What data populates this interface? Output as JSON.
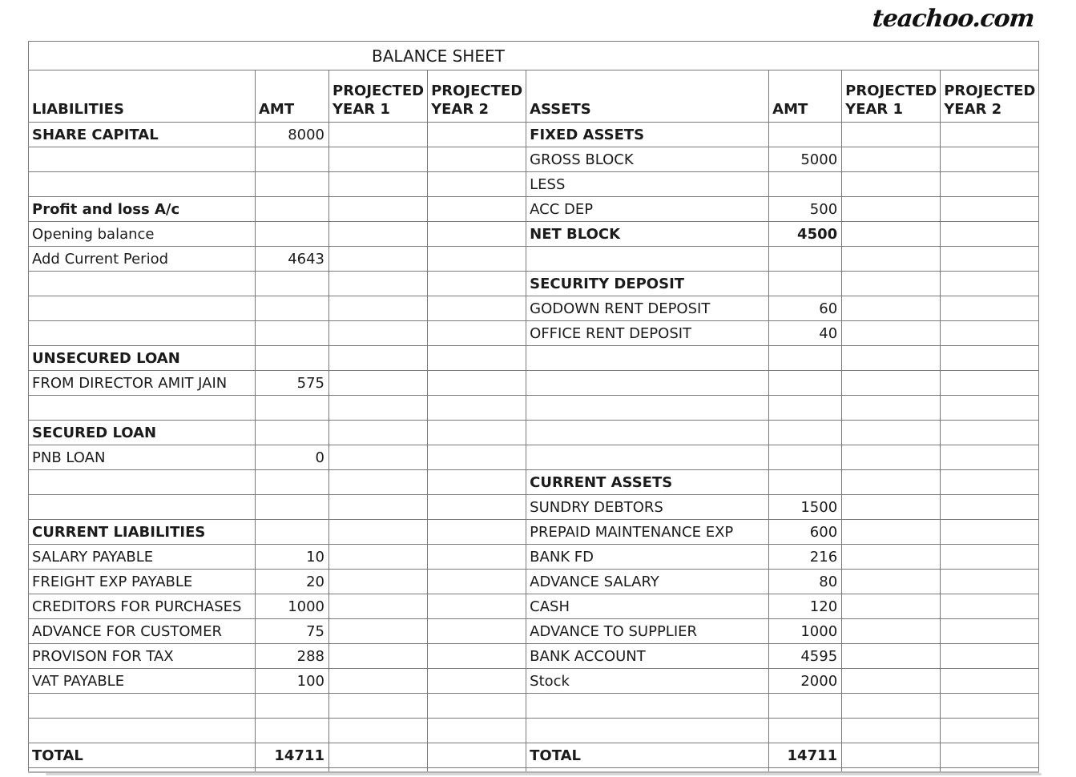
{
  "logo": {
    "text": "teachoo.com"
  },
  "sheet": {
    "title": "BALANCE SHEET",
    "header": {
      "liabilities": "LIABILITIES",
      "amt": "AMT",
      "projected": "PROJECTED",
      "year1": "YEAR 1",
      "year2": "YEAR 2",
      "assets": "ASSETS"
    },
    "rows": [
      {
        "liability": "SHARE CAPITAL",
        "liability_bold": true,
        "liability_amt": "8000",
        "asset": "FIXED ASSETS",
        "asset_bold": true
      },
      {
        "asset": "GROSS BLOCK",
        "asset_amt": "5000"
      },
      {
        "asset": "LESS"
      },
      {
        "liability": "Profit and loss A/c",
        "liability_bold": true,
        "asset": "ACC DEP",
        "asset_amt": "500"
      },
      {
        "liability": "Opening balance",
        "liability_comment": true,
        "asset": "NET BLOCK",
        "asset_bold": true,
        "asset_amt": "4500",
        "asset_amt_bold": true
      },
      {
        "liability": "Add Current Period",
        "liability_amt": "4643"
      },
      {
        "asset": "SECURITY DEPOSIT",
        "asset_bold": true
      },
      {
        "asset": "GODOWN RENT DEPOSIT",
        "asset_amt": "60"
      },
      {
        "asset": "OFFICE RENT DEPOSIT",
        "asset_amt": "40"
      },
      {
        "liability": "UNSECURED LOAN",
        "liability_bold": true
      },
      {
        "liability": "FROM DIRECTOR AMIT JAIN",
        "liability_amt": "575"
      },
      {},
      {
        "liability": "SECURED LOAN",
        "liability_bold": true
      },
      {
        "liability": "PNB LOAN",
        "liability_amt": "0"
      },
      {
        "asset": "CURRENT ASSETS",
        "asset_bold": true
      },
      {
        "asset": "SUNDRY DEBTORS",
        "asset_amt": "1500"
      },
      {
        "liability": "CURRENT LIABILITIES",
        "liability_bold": true,
        "asset": "PREPAID MAINTENANCE EXP",
        "asset_amt": "600"
      },
      {
        "liability": "SALARY PAYABLE",
        "liability_amt": "10",
        "asset": "BANK FD",
        "asset_amt": "216"
      },
      {
        "liability": "FREIGHT EXP PAYABLE",
        "liability_amt": "20",
        "asset": "ADVANCE SALARY",
        "asset_amt": "80"
      },
      {
        "liability": "CREDITORS FOR PURCHASES",
        "liability_amt": "1000",
        "asset": "CASH",
        "asset_amt": "120",
        "asset_comment": true
      },
      {
        "liability": "ADVANCE FOR CUSTOMER",
        "liability_amt": "75",
        "asset": "ADVANCE TO SUPPLIER",
        "asset_amt": "1000"
      },
      {
        "liability": "PROVISON FOR TAX",
        "liability_amt": "288",
        "asset": "BANK ACCOUNT",
        "asset_amt": "4595",
        "asset_comment": true
      },
      {
        "liability": "VAT PAYABLE",
        "liability_amt": "100",
        "asset": "Stock",
        "asset_amt": "2000"
      },
      {},
      {},
      {
        "liability": "TOTAL",
        "liability_bold": true,
        "liability_amt": "14711",
        "liability_amt_bold": true,
        "asset": "TOTAL",
        "asset_bold": true,
        "asset_amt": "14711",
        "asset_amt_bold": true
      }
    ]
  }
}
